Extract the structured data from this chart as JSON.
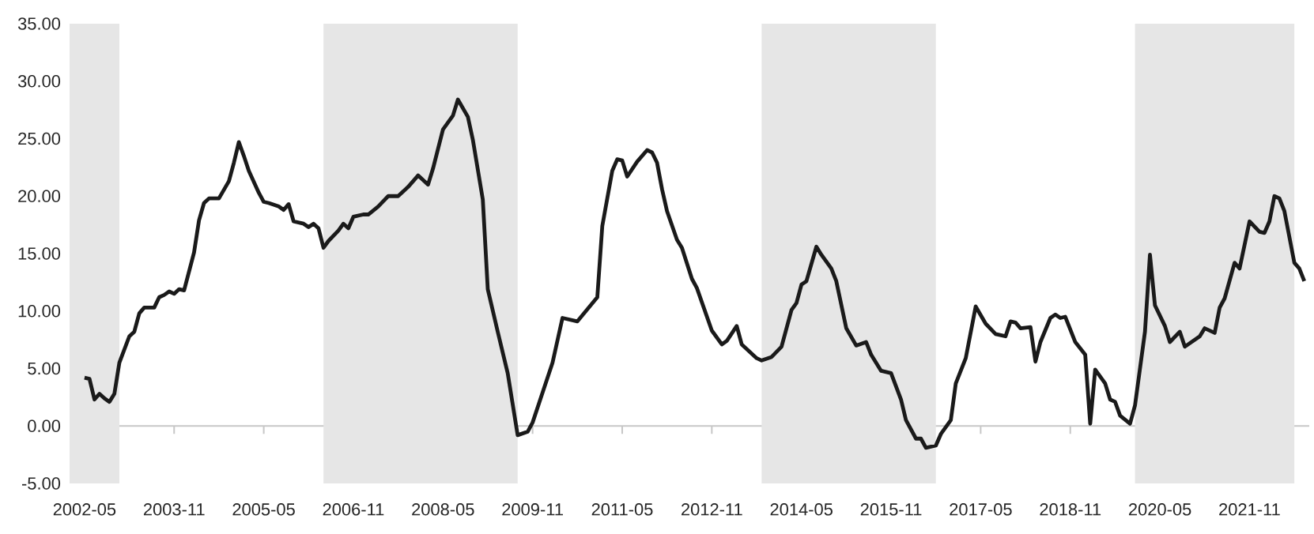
{
  "chart_data": {
    "type": "line",
    "color": "#1a1a1a",
    "x": [
      "2002-05",
      "2002-06",
      "2002-07",
      "2002-08",
      "2002-09",
      "2002-10",
      "2002-11",
      "2002-12",
      "2003-02",
      "2003-03",
      "2003-04",
      "2003-05",
      "2003-07",
      "2003-08",
      "2003-09",
      "2003-10",
      "2003-11",
      "2003-12",
      "2004-01",
      "2004-03",
      "2004-04",
      "2004-05",
      "2004-06",
      "2004-08",
      "2004-10",
      "2004-11",
      "2004-12",
      "2005-01",
      "2005-02",
      "2005-04",
      "2005-05",
      "2005-06",
      "2005-08",
      "2005-09",
      "2005-10",
      "2005-11",
      "2006-01",
      "2006-02",
      "2006-03",
      "2006-04",
      "2006-05",
      "2006-06",
      "2006-08",
      "2006-09",
      "2006-10",
      "2006-11",
      "2007-01",
      "2007-02",
      "2007-04",
      "2007-06",
      "2007-08",
      "2007-10",
      "2007-12",
      "2008-02",
      "2008-03",
      "2008-05",
      "2008-07",
      "2008-08",
      "2008-10",
      "2008-11",
      "2009-01",
      "2009-02",
      "2009-04",
      "2009-06",
      "2009-08",
      "2009-10",
      "2009-11",
      "2010-03",
      "2010-05",
      "2010-08",
      "2010-12",
      "2011-01",
      "2011-03",
      "2011-04",
      "2011-05",
      "2011-06",
      "2011-08",
      "2011-10",
      "2011-11",
      "2011-12",
      "2012-01",
      "2012-02",
      "2012-04",
      "2012-05",
      "2012-07",
      "2012-08",
      "2012-11",
      "2013-01",
      "2013-02",
      "2013-04",
      "2013-05",
      "2013-08",
      "2013-09",
      "2013-11",
      "2014-01",
      "2014-03",
      "2014-04",
      "2014-05",
      "2014-06",
      "2014-08",
      "2014-09",
      "2014-11",
      "2014-12",
      "2015-02",
      "2015-04",
      "2015-06",
      "2015-07",
      "2015-09",
      "2015-11",
      "2016-01",
      "2016-02",
      "2016-04",
      "2016-05",
      "2016-06",
      "2016-08",
      "2016-09",
      "2016-11",
      "2016-12",
      "2017-02",
      "2017-04",
      "2017-06",
      "2017-08",
      "2017-10",
      "2017-11",
      "2017-12",
      "2018-01",
      "2018-03",
      "2018-04",
      "2018-05",
      "2018-07",
      "2018-08",
      "2018-09",
      "2018-10",
      "2018-12",
      "2019-02",
      "2019-03",
      "2019-04",
      "2019-06",
      "2019-07",
      "2019-08",
      "2019-09",
      "2019-11",
      "2019-12",
      "2020-02",
      "2020-03",
      "2020-04",
      "2020-06",
      "2020-07",
      "2020-09",
      "2020-10",
      "2021-01",
      "2021-02",
      "2021-04",
      "2021-05",
      "2021-06",
      "2021-08",
      "2021-09",
      "2021-11",
      "2022-01",
      "2022-02",
      "2022-03",
      "2022-04",
      "2022-05",
      "2022-06",
      "2022-08",
      "2022-09",
      "2022-10"
    ],
    "values": [
      4.2,
      4.1,
      2.3,
      2.8,
      2.4,
      2.1,
      2.8,
      5.5,
      7.8,
      8.2,
      9.8,
      10.3,
      10.3,
      11.2,
      11.4,
      11.7,
      11.5,
      11.9,
      11.8,
      15.1,
      17.9,
      19.4,
      19.8,
      19.8,
      21.3,
      22.9,
      24.7,
      23.5,
      22.2,
      20.3,
      19.5,
      19.4,
      19.1,
      18.8,
      19.3,
      17.8,
      17.6,
      17.3,
      17.6,
      17.2,
      15.5,
      16.1,
      17.0,
      17.6,
      17.2,
      18.2,
      18.4,
      18.4,
      19.1,
      20.0,
      20.0,
      20.8,
      21.8,
      21.0,
      22.4,
      25.8,
      27.0,
      28.4,
      26.9,
      24.9,
      19.7,
      11.9,
      8.2,
      4.6,
      -0.8,
      -0.5,
      0.3,
      5.5,
      9.4,
      9.1,
      11.2,
      17.4,
      22.2,
      23.2,
      23.1,
      21.7,
      23.0,
      24.0,
      23.8,
      22.9,
      20.6,
      18.7,
      16.2,
      15.5,
      12.8,
      12.0,
      8.3,
      7.1,
      7.4,
      8.7,
      7.1,
      5.9,
      5.7,
      6.0,
      6.9,
      10.1,
      10.7,
      12.3,
      12.6,
      15.6,
      14.9,
      13.7,
      12.6,
      8.5,
      7.0,
      7.3,
      6.2,
      4.8,
      4.6,
      2.3,
      0.5,
      -1.1,
      -1.1,
      -1.9,
      -1.7,
      -0.7,
      0.5,
      3.7,
      5.9,
      10.4,
      8.9,
      8.0,
      7.8,
      9.1,
      9.0,
      8.5,
      8.6,
      5.6,
      7.3,
      9.4,
      9.7,
      9.4,
      9.5,
      7.3,
      6.2,
      0.2,
      4.9,
      3.7,
      2.3,
      2.1,
      0.9,
      0.2,
      1.8,
      8.2,
      14.9,
      10.5,
      8.7,
      7.3,
      8.2,
      6.9,
      7.8,
      8.5,
      8.1,
      10.3,
      11.1,
      14.2,
      13.7,
      17.8,
      16.9,
      16.8,
      17.8,
      20.0,
      19.8,
      18.7,
      14.2,
      13.7,
      12.6
    ],
    "xlim": [
      "2002-02",
      "2022-11"
    ],
    "xticks": [
      "2002-05",
      "2003-11",
      "2005-05",
      "2006-11",
      "2008-05",
      "2009-11",
      "2011-05",
      "2012-11",
      "2014-05",
      "2015-11",
      "2017-05",
      "2018-11",
      "2020-05",
      "2021-11"
    ],
    "ylim": [
      -5,
      35
    ],
    "yticks": [
      {
        "value": -5,
        "label": "-5.00"
      },
      {
        "value": 0,
        "label": "0.00"
      },
      {
        "value": 5,
        "label": "5.00"
      },
      {
        "value": 10,
        "label": "10.00"
      },
      {
        "value": 15,
        "label": "15.00"
      },
      {
        "value": 20,
        "label": "20.00"
      },
      {
        "value": 25,
        "label": "25.00"
      },
      {
        "value": 30,
        "label": "30.00"
      },
      {
        "value": 35,
        "label": "35.00"
      }
    ],
    "bands": [
      {
        "axis": "x",
        "from": "2002-02",
        "to": "2002-12",
        "color": "#e6e6e6"
      },
      {
        "axis": "x",
        "from": "2006-05",
        "to": "2009-08",
        "color": "#e6e6e6"
      },
      {
        "axis": "x",
        "from": "2013-09",
        "to": "2016-08",
        "color": "#e6e6e6"
      },
      {
        "axis": "x",
        "from": "2019-12",
        "to": "2022-08",
        "color": "#e6e6e6"
      }
    ]
  }
}
